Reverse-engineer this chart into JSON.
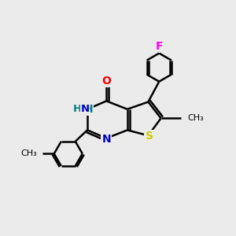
{
  "background_color": "#ebebeb",
  "bond_color": "#000000",
  "atom_colors": {
    "N": "#0000cc",
    "O": "#ff0000",
    "S": "#cccc00",
    "F": "#ff00ff",
    "H": "#008080",
    "C": "#000000"
  },
  "figsize": [
    3.0,
    3.0
  ],
  "dpi": 100
}
